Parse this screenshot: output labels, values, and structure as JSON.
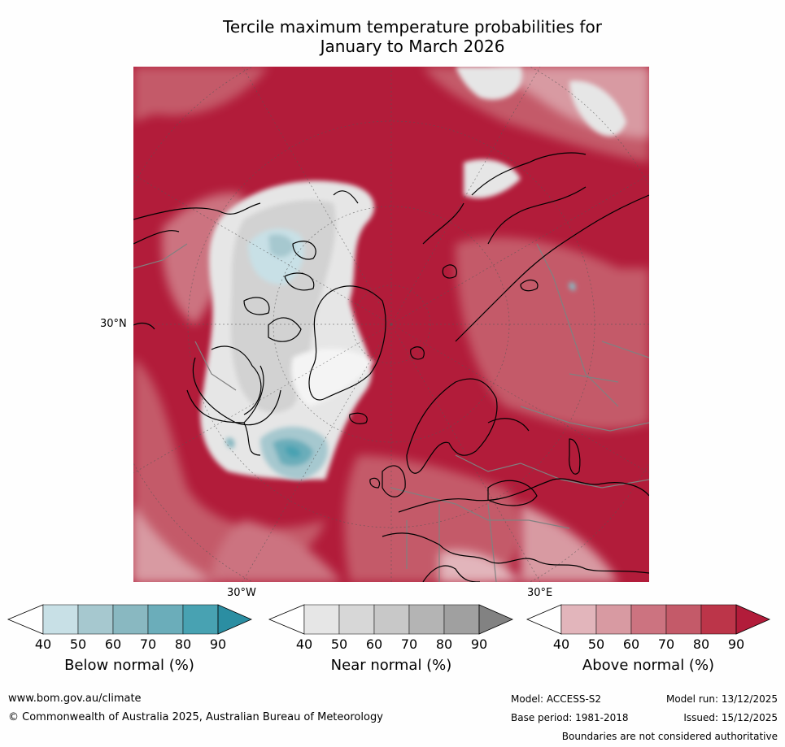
{
  "title": {
    "line1": "Tercile maximum temperature probabilities for",
    "line2": "January to March 2026"
  },
  "map": {
    "lat_label": "30°N",
    "lon_labels": [
      "30°W",
      "30°E"
    ]
  },
  "colorbars": [
    {
      "title": "Below normal (%)",
      "ticks": [
        "40",
        "50",
        "60",
        "70",
        "80",
        "90"
      ],
      "colors": [
        "#ffffff",
        "#c8e0e6",
        "#a6c8cf",
        "#89b8c1",
        "#6badba",
        "#48a2b2",
        "#2b8ea2"
      ]
    },
    {
      "title": "Near normal (%)",
      "ticks": [
        "40",
        "50",
        "60",
        "70",
        "80",
        "90"
      ],
      "colors": [
        "#ffffff",
        "#e6e6e6",
        "#d7d7d7",
        "#c8c8c8",
        "#b4b4b4",
        "#a0a0a0",
        "#828282"
      ]
    },
    {
      "title": "Above normal (%)",
      "ticks": [
        "40",
        "50",
        "60",
        "70",
        "80",
        "90"
      ],
      "colors": [
        "#ffffff",
        "#e2b5bb",
        "#d89aa2",
        "#cc7380",
        "#c45a69",
        "#bc3549",
        "#b21c3a"
      ]
    }
  ],
  "footer": {
    "website": "www.bom.gov.au/climate",
    "copyright": "© Commonwealth of Australia 2025, Australian Bureau of Meteorology",
    "model": "Model: ACCESS-S2",
    "model_run": "Model run: 13/12/2025",
    "base_period": "Base period: 1981-2018",
    "issued": "Issued: 15/12/2025",
    "disclaimer": "Boundaries are not considered authoritative"
  },
  "colors": {
    "above_strong": "#b21c3a",
    "above_mid": "#c45a69",
    "above_light": "#d89aa2",
    "near_light": "#e6e6e6",
    "near_mid": "#d2d2d2",
    "below_light": "#c8e0e6",
    "below_mid": "#89b8c1",
    "below_strong": "#48a2b2",
    "coast": "#000000",
    "border": "#808080"
  }
}
